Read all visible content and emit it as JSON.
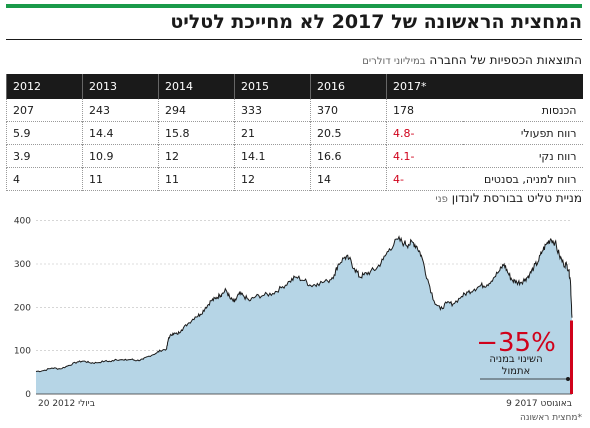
{
  "headline": "המחצית הראשונה של 2017 לא מחייכת לטליט",
  "colors": {
    "accent": "#1a9a4a",
    "area": "#b6d5e6",
    "line": "#1a1a1a",
    "negative": "#d0021b"
  },
  "table": {
    "title": "התוצאות הכספיות של החברה",
    "note": "במיליוני דולרים",
    "columns": [
      "*2017",
      "2016",
      "2015",
      "2014",
      "2013",
      "2012"
    ],
    "rows": [
      {
        "label": "הכנסות",
        "values": [
          "178",
          "370",
          "333",
          "294",
          "243",
          "207"
        ]
      },
      {
        "label": "רווח תפעולי",
        "values": [
          "-4.8",
          "20.5",
          "21",
          "15.8",
          "14.4",
          "5.9"
        ]
      },
      {
        "label": "רווח נקי",
        "values": [
          "-4.1",
          "16.6",
          "14.1",
          "12",
          "10.9",
          "3.9"
        ]
      },
      {
        "label": "רווח למניה, בסנטים",
        "values": [
          "-4",
          "14",
          "12",
          "11",
          "11",
          "4"
        ]
      }
    ]
  },
  "chart_title": {
    "title": "מניית טליט בבורסת לונדון",
    "unit": "פני"
  },
  "chart_data": {
    "type": "area",
    "x_start_label": "20 ביולי 2012",
    "x_end_label": "9 באוגוסט 2017",
    "y_ticks": [
      0,
      100,
      200,
      300,
      400
    ],
    "ylim": [
      0,
      420
    ],
    "grid": true,
    "series": [
      {
        "x": [
          2012.55,
          2012.62,
          2012.7,
          2012.78,
          2012.86,
          2012.94,
          2013.0,
          2013.06,
          2013.12,
          2013.2,
          2013.26,
          2013.3,
          2013.38,
          2013.45,
          2013.5,
          2013.56,
          2013.6,
          2013.68,
          2013.72,
          2013.78,
          2013.8,
          2013.84,
          2013.88,
          2013.92,
          2013.98,
          2014.05,
          2014.1,
          2014.15,
          2014.2,
          2014.24,
          2014.28,
          2014.3,
          2014.34,
          2014.38,
          2014.42,
          2014.46,
          2014.5,
          2014.56,
          2014.62,
          2014.7,
          2014.78,
          2014.86,
          2014.94,
          2015.0,
          2015.08,
          2015.14,
          2015.2,
          2015.3,
          2015.36,
          2015.4,
          2015.46,
          2015.5,
          2015.55,
          2015.6,
          2015.64,
          2015.7,
          2015.76,
          2015.82,
          2015.88,
          2015.96,
          2016.02,
          2016.06,
          2016.1,
          2016.14,
          2016.18,
          2016.24,
          2016.3,
          2016.36,
          2016.42,
          2016.48,
          2016.56,
          2016.62,
          2016.68,
          2016.74,
          2016.8,
          2016.86,
          2016.92,
          2016.96,
          2017.0,
          2017.04,
          2017.08,
          2017.12,
          2017.16,
          2017.2,
          2017.24,
          2017.28,
          2017.32,
          2017.36,
          2017.4,
          2017.44,
          2017.48,
          2017.52,
          2017.55,
          2017.57,
          2017.585,
          2017.6
        ],
        "values": [
          52,
          54,
          60,
          58,
          66,
          74,
          76,
          72,
          72,
          76,
          75,
          80,
          78,
          80,
          77,
          80,
          86,
          94,
          100,
          104,
          130,
          140,
          138,
          148,
          162,
          178,
          184,
          200,
          215,
          220,
          228,
          230,
          240,
          220,
          212,
          230,
          228,
          215,
          225,
          228,
          232,
          245,
          260,
          270,
          262,
          250,
          255,
          260,
          275,
          300,
          316,
          312,
          290,
          270,
          275,
          282,
          290,
          310,
          335,
          357,
          348,
          345,
          350,
          340,
          320,
          265,
          215,
          195,
          210,
          208,
          225,
          235,
          242,
          250,
          252,
          268,
          285,
          300,
          278,
          262,
          258,
          258,
          265,
          275,
          292,
          305,
          330,
          346,
          358,
          350,
          320,
          300,
          298,
          285,
          262,
          176
        ]
      }
    ],
    "annotation": {
      "value": "−35%",
      "text": [
        "השינוי במניה",
        "אתמול"
      ]
    }
  },
  "credit": "*מחצית ראשונה"
}
